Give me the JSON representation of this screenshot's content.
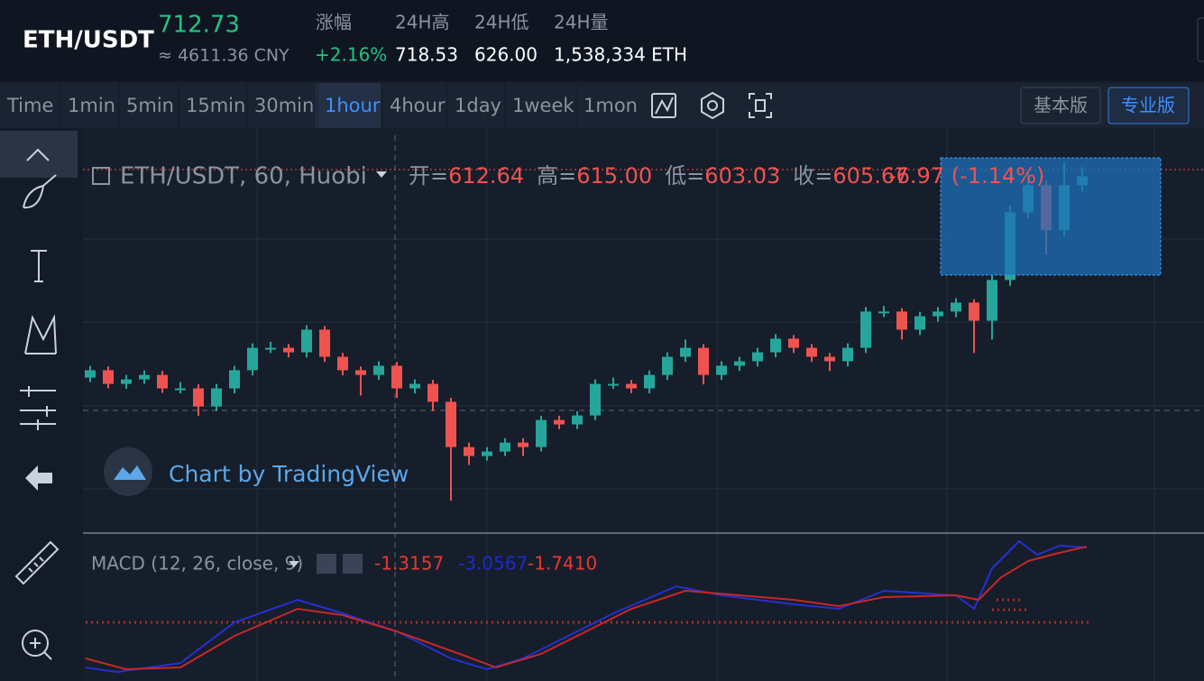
{
  "header": {
    "pair": "ETH/USDT",
    "price": "712.73",
    "cny": "≈ 4611.36 CNY",
    "stats": [
      {
        "label": "涨幅",
        "value": "+2.16%"
      },
      {
        "label": "24H高",
        "value": "718.53"
      },
      {
        "label": "24H低",
        "value": "626.00"
      },
      {
        "label": "24H量",
        "value": "1,538,334 ETH"
      }
    ]
  },
  "toolbar": {
    "intervals": [
      "Time",
      "1min",
      "5min",
      "15min",
      "30min",
      "1hour",
      "4hour",
      "1day",
      "1week",
      "1mon"
    ],
    "active": "1hour",
    "buttons": [
      "基本版",
      "专业版"
    ]
  },
  "legend": {
    "symbol": "ETH/USDT, 60, Huobi",
    "fields": [
      {
        "label": "开=",
        "value": "612.64"
      },
      {
        "label": "高=",
        "value": "615.00"
      },
      {
        "label": "低=",
        "value": "603.03"
      },
      {
        "label": "收=",
        "value": "605.67"
      }
    ],
    "change": "-6.97 (-1.14%)"
  },
  "watermark": "Chart by TradingView",
  "macd": {
    "title": "MACD (12, 26, close, 9)",
    "values": [
      {
        "value": "-1.3157",
        "color": "#e53935"
      },
      {
        "value": "-3.0567",
        "color": "#1a2bcc"
      },
      {
        "value": "-1.7410",
        "color": "#e53935"
      }
    ]
  },
  "chart_data": {
    "type": "candlestick",
    "ylim": [
      551,
      731
    ],
    "up_color": "#26a69a",
    "down_color": "#ef5350",
    "candles": [
      [
        620,
        625.3,
        618,
        623.3
      ],
      [
        623.3,
        625,
        615.2,
        617.2
      ],
      [
        617.2,
        621.2,
        615,
        619.2
      ],
      [
        619.2,
        623.2,
        617.2,
        621.2
      ],
      [
        621.2,
        623,
        613.2,
        615.2
      ],
      [
        615.2,
        618,
        613,
        615.2
      ],
      [
        615.2,
        617,
        603,
        607.1
      ],
      [
        607.1,
        617.2,
        605,
        615.2
      ],
      [
        615.2,
        625.3,
        613,
        623.3
      ],
      [
        623.3,
        635.3,
        621,
        633.3
      ],
      [
        633.3,
        636,
        631,
        633.3
      ],
      [
        633.3,
        635,
        629,
        631.3
      ],
      [
        631.3,
        643.4,
        629,
        641.4
      ],
      [
        641.4,
        643,
        627,
        629.3
      ],
      [
        629.3,
        631,
        621,
        623.3
      ],
      [
        623.3,
        625,
        612,
        621.2
      ],
      [
        621.2,
        627.3,
        619,
        625.3
      ],
      [
        625.3,
        627,
        611,
        615.2
      ],
      [
        615.2,
        619.2,
        613,
        617.2
      ],
      [
        617.2,
        619,
        605,
        609.2
      ],
      [
        609.2,
        611,
        565,
        589
      ],
      [
        589,
        591,
        581,
        585
      ],
      [
        585,
        589,
        583,
        587
      ],
      [
        587,
        593,
        585,
        591
      ],
      [
        591,
        593,
        585,
        589
      ],
      [
        589,
        603,
        587,
        601.1
      ],
      [
        601.1,
        603,
        597,
        599.1
      ],
      [
        599.1,
        605,
        597,
        603.1
      ],
      [
        603.1,
        619.2,
        601,
        617.2
      ],
      [
        617.2,
        620,
        615,
        617.2
      ],
      [
        617.2,
        619,
        613,
        615.2
      ],
      [
        615.2,
        623.2,
        613,
        621.2
      ],
      [
        621.2,
        631.3,
        619,
        629.3
      ],
      [
        629.3,
        637,
        627,
        633.3
      ],
      [
        633.3,
        635,
        617,
        621.2
      ],
      [
        621.2,
        627.3,
        619,
        625.3
      ],
      [
        625.3,
        629.3,
        623,
        627.3
      ],
      [
        627.3,
        633.3,
        625,
        631.3
      ],
      [
        631.3,
        639.4,
        629,
        637.4
      ],
      [
        637.4,
        639,
        631,
        633.3
      ],
      [
        633.3,
        635,
        627,
        629.3
      ],
      [
        629.3,
        631,
        623,
        627.3
      ],
      [
        627.3,
        635.3,
        625,
        633.3
      ],
      [
        633.3,
        651.5,
        631,
        649.5
      ],
      [
        649.5,
        652,
        647,
        649.5
      ],
      [
        649.5,
        651,
        637,
        641.4
      ],
      [
        641.4,
        649.4,
        639,
        647.4
      ],
      [
        647.4,
        651.5,
        645,
        649.5
      ],
      [
        649.5,
        655.5,
        647,
        653.5
      ],
      [
        653.5,
        655,
        631,
        645.4
      ],
      [
        645.4,
        665.6,
        637,
        663.6
      ],
      [
        663.6,
        697,
        661,
        693.8
      ],
      [
        693.8,
        712,
        691,
        705.9
      ],
      [
        705.9,
        708,
        675,
        685.8
      ],
      [
        685.8,
        716,
        683,
        705.9
      ],
      [
        705.9,
        714,
        703,
        709.9
      ]
    ]
  }
}
